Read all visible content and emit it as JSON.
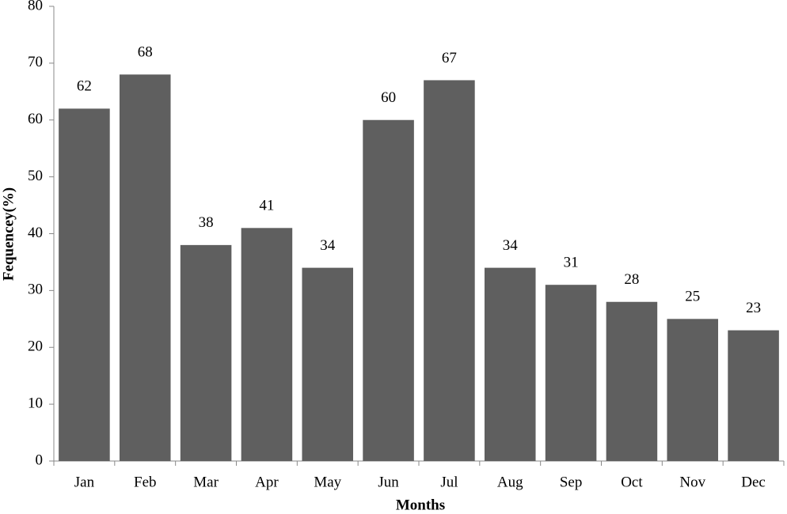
{
  "chart_data": {
    "type": "bar",
    "xlabel": "Months",
    "ylabel": "Fequencey(%)",
    "categories": [
      "Jan",
      "Feb",
      "Mar",
      "Apr",
      "May",
      "Jun",
      "Jul",
      "Aug",
      "Sep",
      "Oct",
      "Nov",
      "Dec"
    ],
    "values": [
      62,
      68,
      38,
      41,
      34,
      60,
      67,
      34,
      31,
      28,
      25,
      23
    ],
    "color": "#5f5f5f",
    "ylim": [
      0,
      80
    ],
    "yticks": [
      0,
      10,
      20,
      30,
      40,
      50,
      60,
      70,
      80
    ],
    "grid": false
  }
}
